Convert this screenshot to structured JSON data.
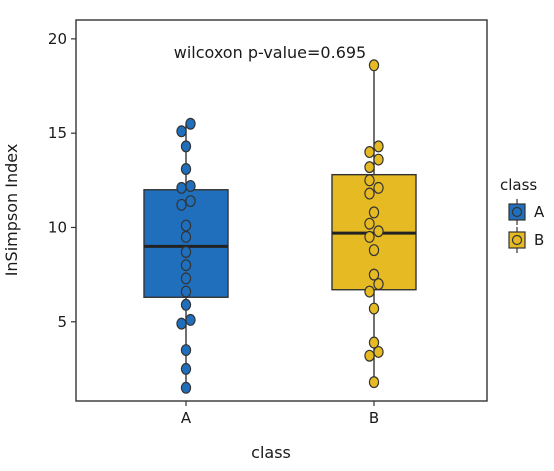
{
  "chart_data": {
    "type": "box",
    "xlabel": "class",
    "ylabel": "InSimpson Index",
    "ylim": [
      0.8,
      21
    ],
    "yticks": [
      5,
      10,
      15,
      20
    ],
    "categories": [
      "A",
      "B"
    ],
    "annotation": "wilcoxon p-value=0.695",
    "legend": {
      "title": "class",
      "placement": "right",
      "entries": [
        "A",
        "B"
      ]
    },
    "grid": false,
    "series": [
      {
        "name": "A",
        "color": "#1f6fbd",
        "stats": {
          "min": 1.5,
          "q1": 6.3,
          "median": 9.0,
          "q3": 12.0,
          "max": 15.5
        },
        "points": [
          1.5,
          2.5,
          3.5,
          4.9,
          5.1,
          5.9,
          6.6,
          7.3,
          8.0,
          8.7,
          9.5,
          10.1,
          11.2,
          11.4,
          12.1,
          12.2,
          13.1,
          14.3,
          15.1,
          15.5
        ]
      },
      {
        "name": "B",
        "color": "#e6ba22",
        "stats": {
          "min": 1.8,
          "q1": 6.7,
          "median": 9.7,
          "q3": 12.8,
          "max": 18.6
        },
        "points": [
          1.8,
          3.2,
          3.4,
          3.9,
          5.7,
          6.6,
          7.0,
          7.5,
          8.8,
          9.5,
          9.8,
          10.2,
          10.8,
          11.8,
          12.1,
          12.5,
          13.2,
          13.6,
          14.0,
          14.3,
          18.6
        ]
      }
    ]
  }
}
